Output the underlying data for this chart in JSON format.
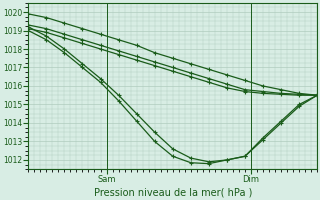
{
  "title": "",
  "xlabel": "Pression niveau de la mer( hPa )",
  "ylabel": "",
  "ylim": [
    1011.5,
    1020.5
  ],
  "xlim": [
    0,
    48
  ],
  "bg_color": "#d8ede4",
  "grid_color": "#b0ccbe",
  "line_color": "#1a5c1a",
  "marker": "P",
  "markersize": 2.2,
  "linewidth": 0.9,
  "sam_x": 13,
  "dim_x": 37,
  "yticks": [
    1012,
    1013,
    1014,
    1015,
    1016,
    1017,
    1018,
    1019,
    1020
  ],
  "lines": [
    [
      0,
      1019.9,
      3,
      1019.7,
      6,
      1019.4,
      9,
      1019.1,
      12,
      1018.8,
      15,
      1018.5,
      18,
      1018.2,
      21,
      1017.8,
      24,
      1017.5,
      27,
      1017.2,
      30,
      1016.9,
      33,
      1016.6,
      36,
      1016.3,
      39,
      1016.0,
      42,
      1015.8,
      45,
      1015.6,
      48,
      1015.5
    ],
    [
      0,
      1019.3,
      3,
      1019.1,
      6,
      1018.8,
      9,
      1018.5,
      12,
      1018.2,
      15,
      1017.9,
      18,
      1017.6,
      21,
      1017.3,
      24,
      1017.0,
      27,
      1016.7,
      30,
      1016.4,
      33,
      1016.1,
      36,
      1015.8,
      39,
      1015.7,
      42,
      1015.6,
      45,
      1015.55,
      48,
      1015.5
    ],
    [
      0,
      1019.1,
      3,
      1018.9,
      6,
      1018.6,
      9,
      1018.3,
      12,
      1018.0,
      15,
      1017.7,
      18,
      1017.4,
      21,
      1017.1,
      24,
      1016.8,
      27,
      1016.5,
      30,
      1016.2,
      33,
      1015.9,
      36,
      1015.7,
      39,
      1015.6,
      42,
      1015.55,
      45,
      1015.5,
      48,
      1015.5
    ],
    [
      0,
      1019.2,
      3,
      1018.7,
      6,
      1018.0,
      9,
      1017.2,
      12,
      1016.4,
      15,
      1015.5,
      18,
      1014.5,
      21,
      1013.5,
      24,
      1012.6,
      27,
      1012.1,
      30,
      1011.9,
      33,
      1012.0,
      36,
      1012.2,
      39,
      1013.1,
      42,
      1014.0,
      45,
      1014.9,
      48,
      1015.5
    ],
    [
      0,
      1019.0,
      3,
      1018.5,
      6,
      1017.8,
      9,
      1017.0,
      12,
      1016.2,
      15,
      1015.2,
      18,
      1014.1,
      21,
      1013.0,
      24,
      1012.2,
      27,
      1011.85,
      30,
      1011.8,
      33,
      1012.0,
      36,
      1012.2,
      39,
      1013.2,
      42,
      1014.1,
      45,
      1015.0,
      48,
      1015.5
    ]
  ]
}
